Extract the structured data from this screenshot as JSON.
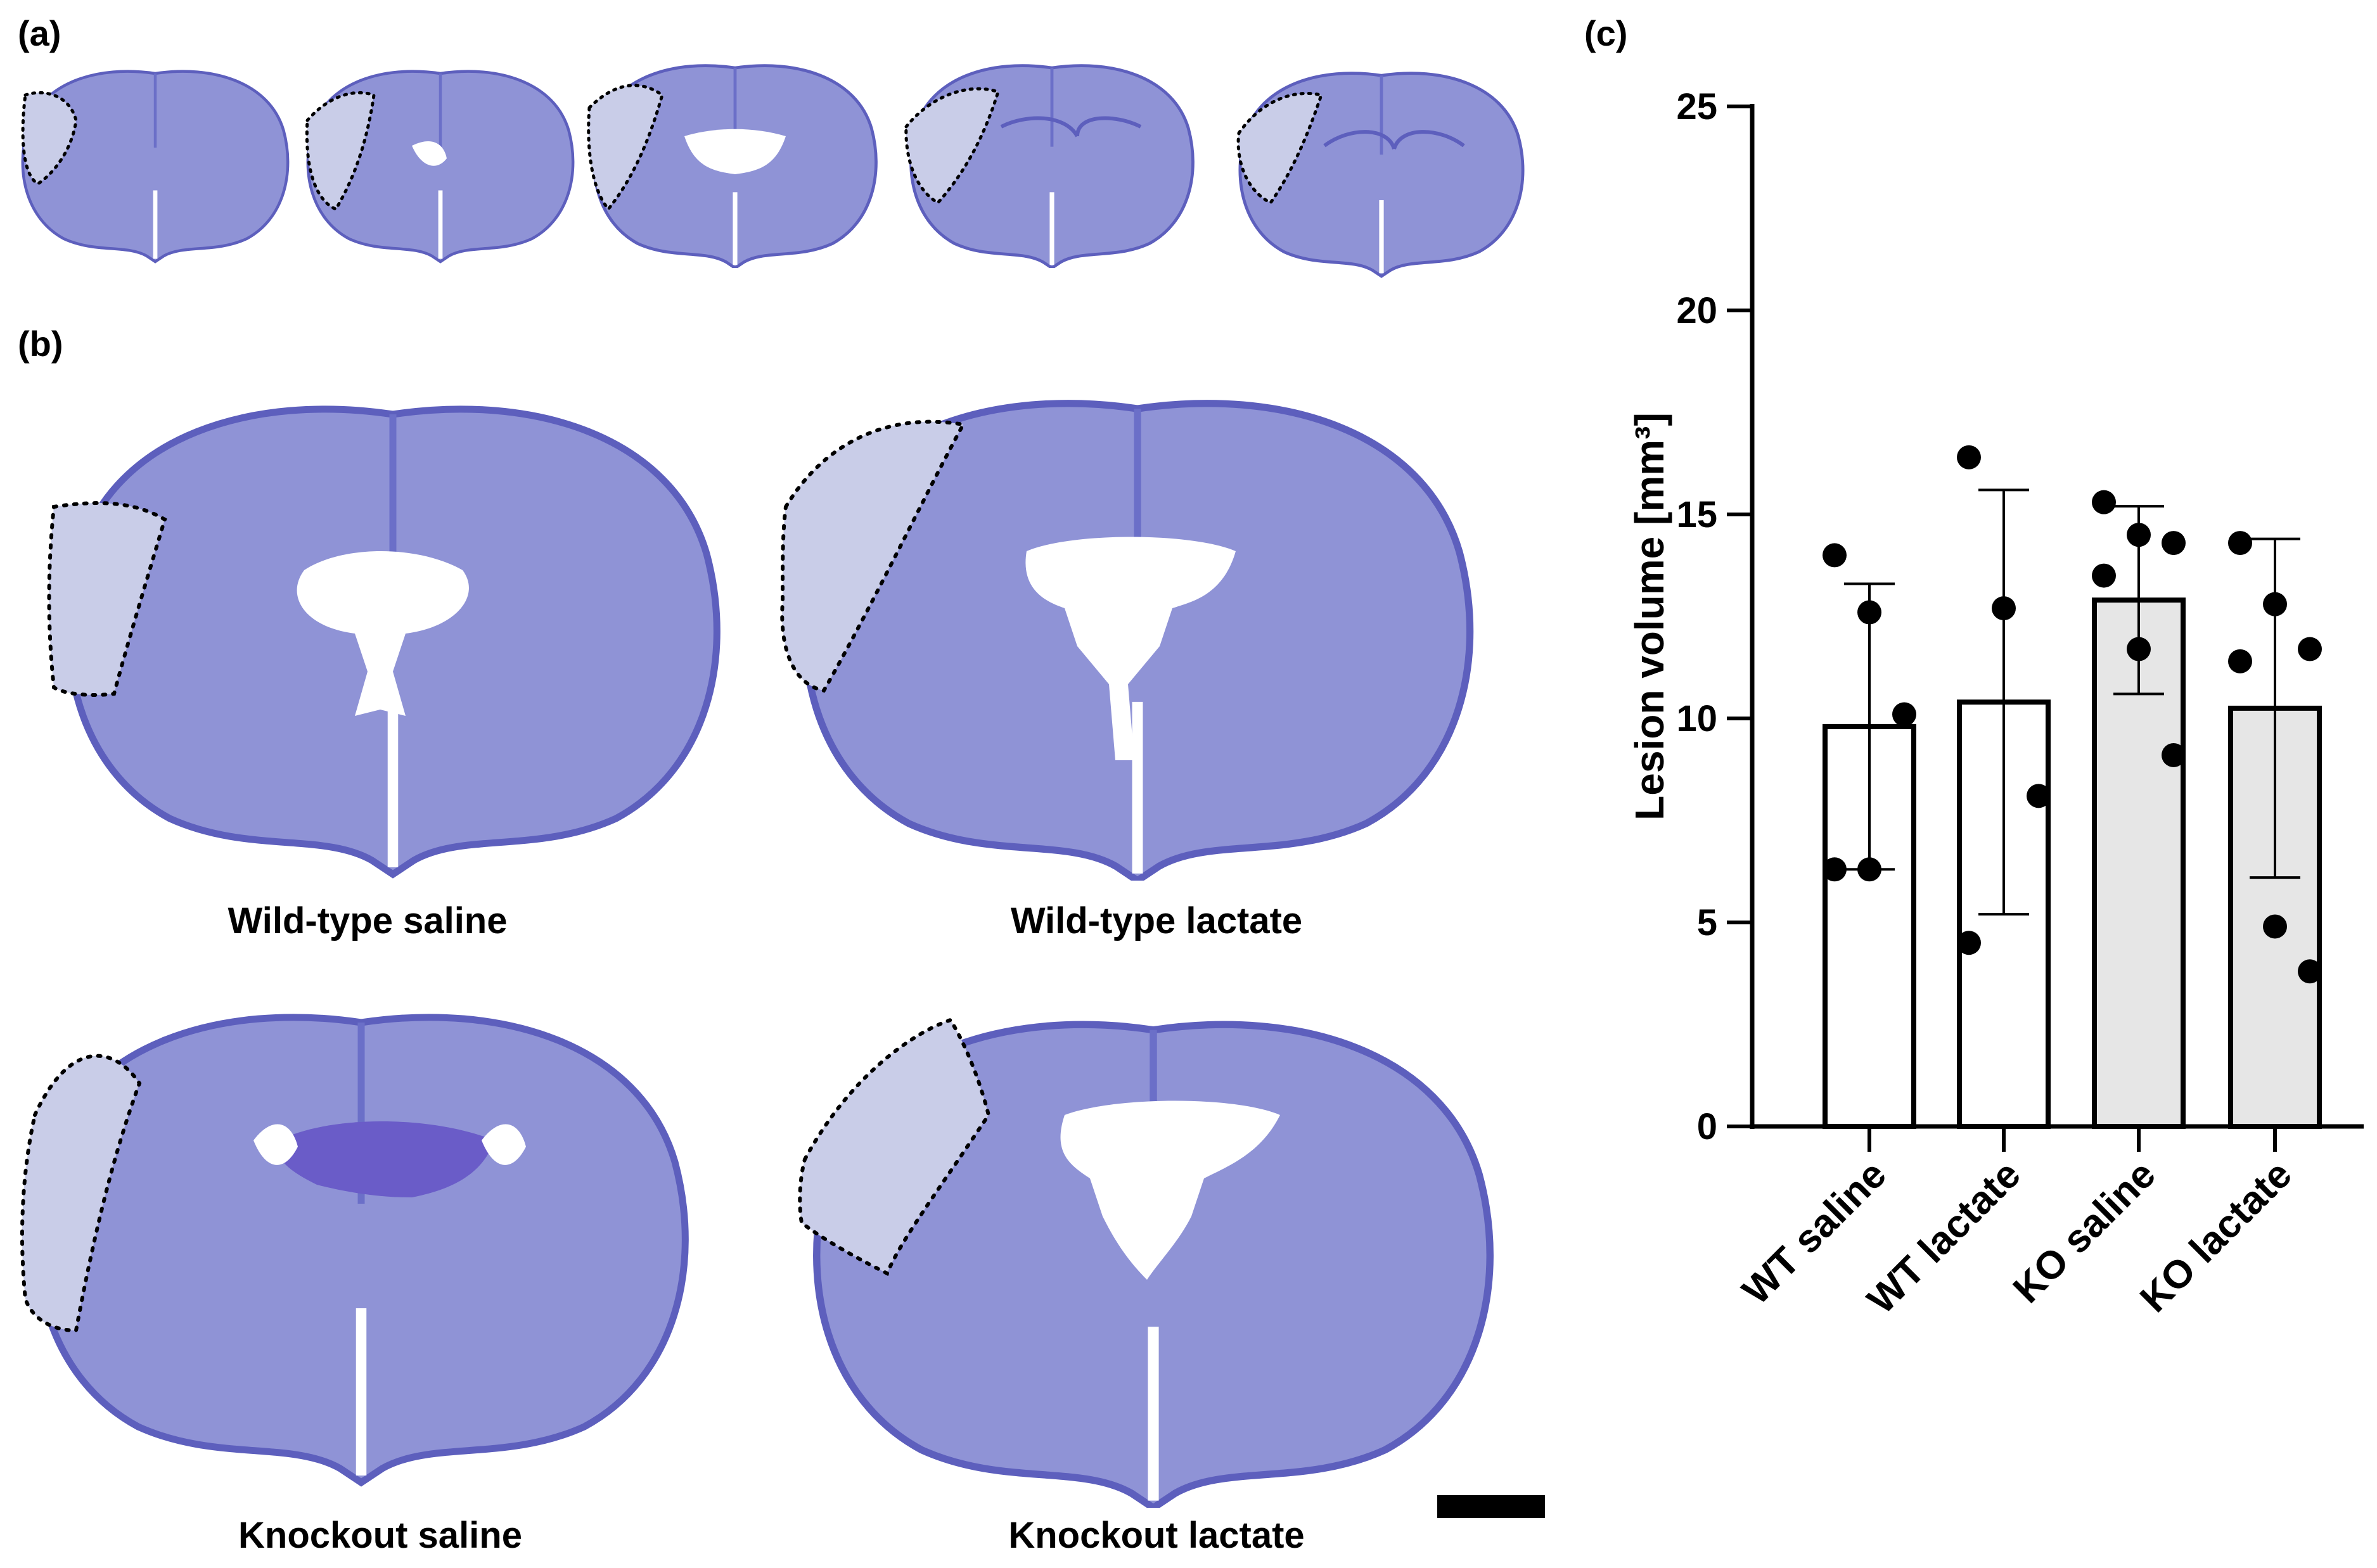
{
  "panels": {
    "a_label": "(a)",
    "b_label": "(b)",
    "c_label": "(c)"
  },
  "sections_b": {
    "wt_saline": "Wild-type saline",
    "wt_lactate": "Wild-type lactate",
    "ko_saline": "Knockout saline",
    "ko_lactate": "Knockout lactate"
  },
  "colors": {
    "tissue": "#8f93d6",
    "tissue_dark": "#5d5fbd",
    "lesion": "#c9cde8",
    "ventricle": "#ffffff",
    "bar_wt": "#ffffff",
    "bar_ko": "#e6e6e6"
  },
  "chart_data": {
    "type": "bar",
    "categories": [
      "WT saline",
      "WT lactate",
      "KO saline",
      "KO lactate"
    ],
    "values": [
      9.8,
      10.4,
      12.9,
      10.25
    ],
    "error_low": [
      6.3,
      5.2,
      10.6,
      6.1
    ],
    "error_high": [
      13.3,
      15.6,
      15.2,
      14.4
    ],
    "points": [
      [
        14.0,
        12.6,
        10.1,
        6.3,
        6.3
      ],
      [
        16.4,
        12.7,
        8.1,
        4.5
      ],
      [
        15.3,
        14.5,
        14.3,
        13.5,
        11.7,
        9.1
      ],
      [
        14.3,
        12.8,
        11.7,
        11.4,
        4.9,
        3.8
      ]
    ],
    "ylabel": "Lesion volume [mm³]",
    "ylim": [
      0,
      25
    ],
    "yticks": [
      "0",
      "5",
      "10",
      "15",
      "20",
      "25"
    ],
    "grid": false
  }
}
